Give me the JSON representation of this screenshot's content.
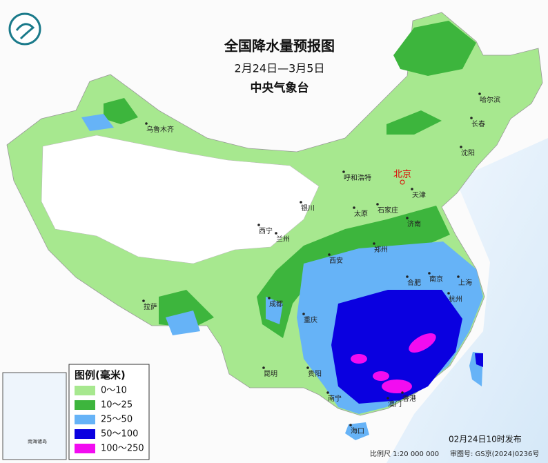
{
  "header": {
    "title": "全国降水量预报图",
    "period": "2月24日—3月5日",
    "issuer": "中央气象台"
  },
  "legend": {
    "title": "图例(毫米)",
    "items": [
      {
        "label": "0～10",
        "color": "#a7e88f"
      },
      {
        "label": "10～25",
        "color": "#3db53d"
      },
      {
        "label": "25～50",
        "color": "#66b3f7"
      },
      {
        "label": "50～100",
        "color": "#0a00e0"
      },
      {
        "label": "100～250",
        "color": "#f20cf0"
      }
    ]
  },
  "capital": "北京",
  "cities": [
    "乌鲁木齐",
    "哈尔滨",
    "长春",
    "沈阳",
    "呼和浩特",
    "天津",
    "银川",
    "太原",
    "石家庄",
    "济南",
    "西宁",
    "兰州",
    "郑州",
    "西安",
    "合肥",
    "南京",
    "上海",
    "杭州",
    "拉萨",
    "成都",
    "重庆",
    "贵阳",
    "昆明",
    "南宁",
    "澳门",
    "香港",
    "海口"
  ],
  "inset": {
    "title": "南海诸岛"
  },
  "footer": {
    "issued": "02月24日10时发布",
    "scale": "比例尺 1:20 000 000",
    "approval": "审图号: GS京(2024)0236号"
  }
}
